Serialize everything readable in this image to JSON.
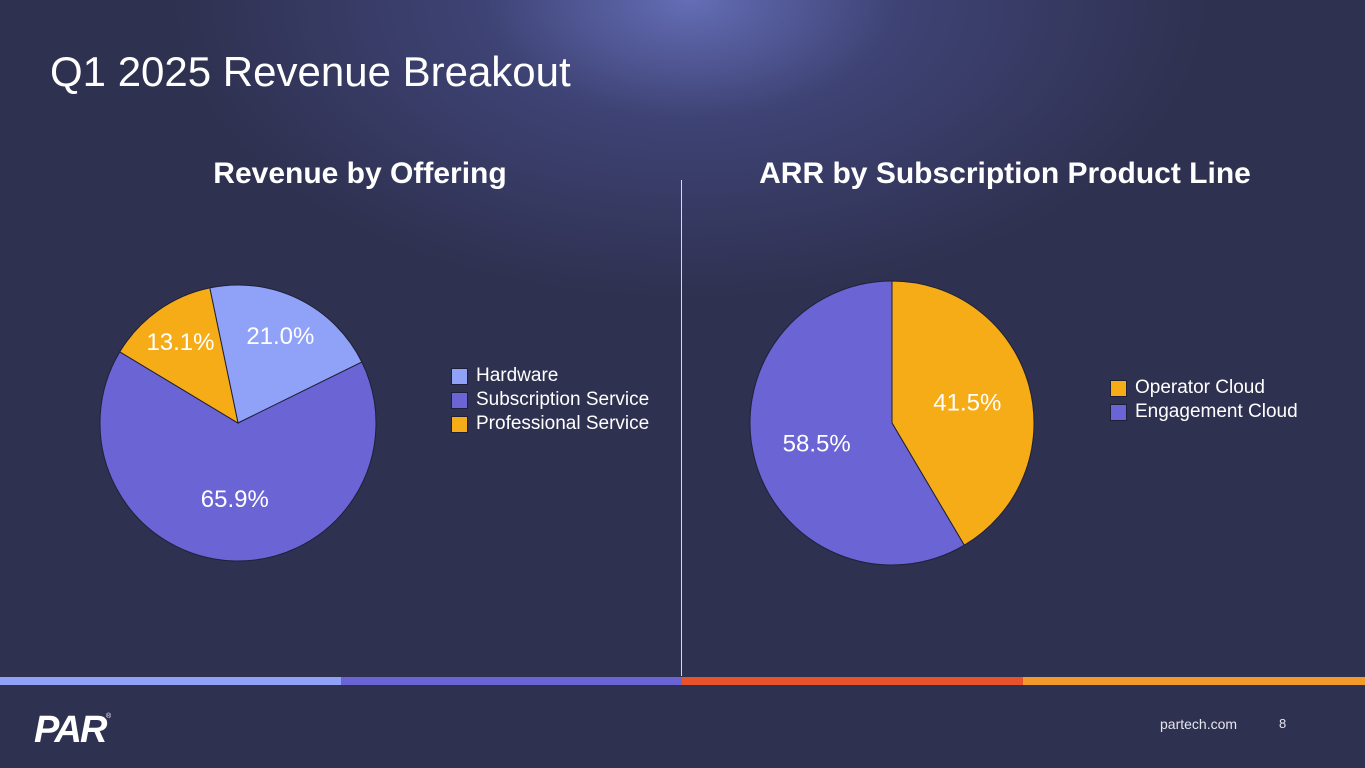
{
  "slide": {
    "title": "Q1 2025 Revenue Breakout",
    "url": "partech.com",
    "page_number": "8",
    "logo_text": "PAR"
  },
  "colors": {
    "background": "#2f3150",
    "hardware": "#8fa2f7",
    "subscription": "#6b64d4",
    "professional": "#f5ac17",
    "stripe": [
      "#8fa2f7",
      "#6b64d4",
      "#e8532b",
      "#f29b2b"
    ]
  },
  "chart_data": [
    {
      "type": "pie",
      "title": "Revenue by Offering",
      "legend_position": "right",
      "labels": [
        "Hardware",
        "Subscription Service",
        "Professional Service"
      ],
      "values": [
        21.0,
        65.9,
        13.1
      ],
      "data_labels": [
        "21.0%",
        "65.9%",
        "13.1%"
      ],
      "colors": [
        "#8fa2f7",
        "#6b64d4",
        "#f5ac17"
      ]
    },
    {
      "type": "pie",
      "title": "ARR by Subscription Product Line",
      "legend_position": "right",
      "labels": [
        "Operator Cloud",
        "Engagement Cloud"
      ],
      "values": [
        41.5,
        58.5
      ],
      "data_labels": [
        "41.5%",
        "58.5%"
      ],
      "colors": [
        "#f5ac17",
        "#6b64d4"
      ]
    }
  ]
}
